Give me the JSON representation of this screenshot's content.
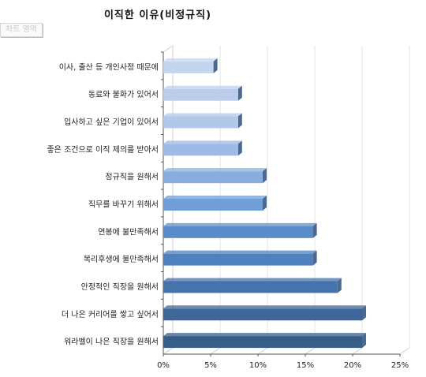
{
  "chart_data": {
    "type": "bar",
    "orientation": "horizontal",
    "title": "이직한 이유(비정규직)",
    "area_tag": "차트 영역",
    "categories": [
      "이사, 출산 등 개인사정 때문에",
      "동료와 불화가 있어서",
      "입사하고 싶은 기업이 있어서",
      "좋은 조건으로 이직 제의를 받아서",
      "정규직을 원해서",
      "직무를 바꾸기 위해서",
      "연봉에 불만족해서",
      "복리후생에 불만족해서",
      "안정적인 직장을 원해서",
      "더 나은 커리어를 쌓고 싶어서",
      "워라벨이 나은 직장을 원해서"
    ],
    "values": [
      5.3,
      7.9,
      7.9,
      7.9,
      10.5,
      10.5,
      15.8,
      15.8,
      18.4,
      21.0,
      21.0
    ],
    "xlim": [
      0,
      25
    ],
    "xticks": [
      "0%",
      "5%",
      "10%",
      "15%",
      "20%",
      "25%"
    ],
    "bar_colors": [
      "#c5d5ee",
      "#bccdec",
      "#b1c8e9",
      "#9fbbe5",
      "#88aee0",
      "#6f9ed8",
      "#5a8ccb",
      "#4e81be",
      "#4673ac",
      "#3e6698",
      "#375d89"
    ],
    "grid": true
  }
}
